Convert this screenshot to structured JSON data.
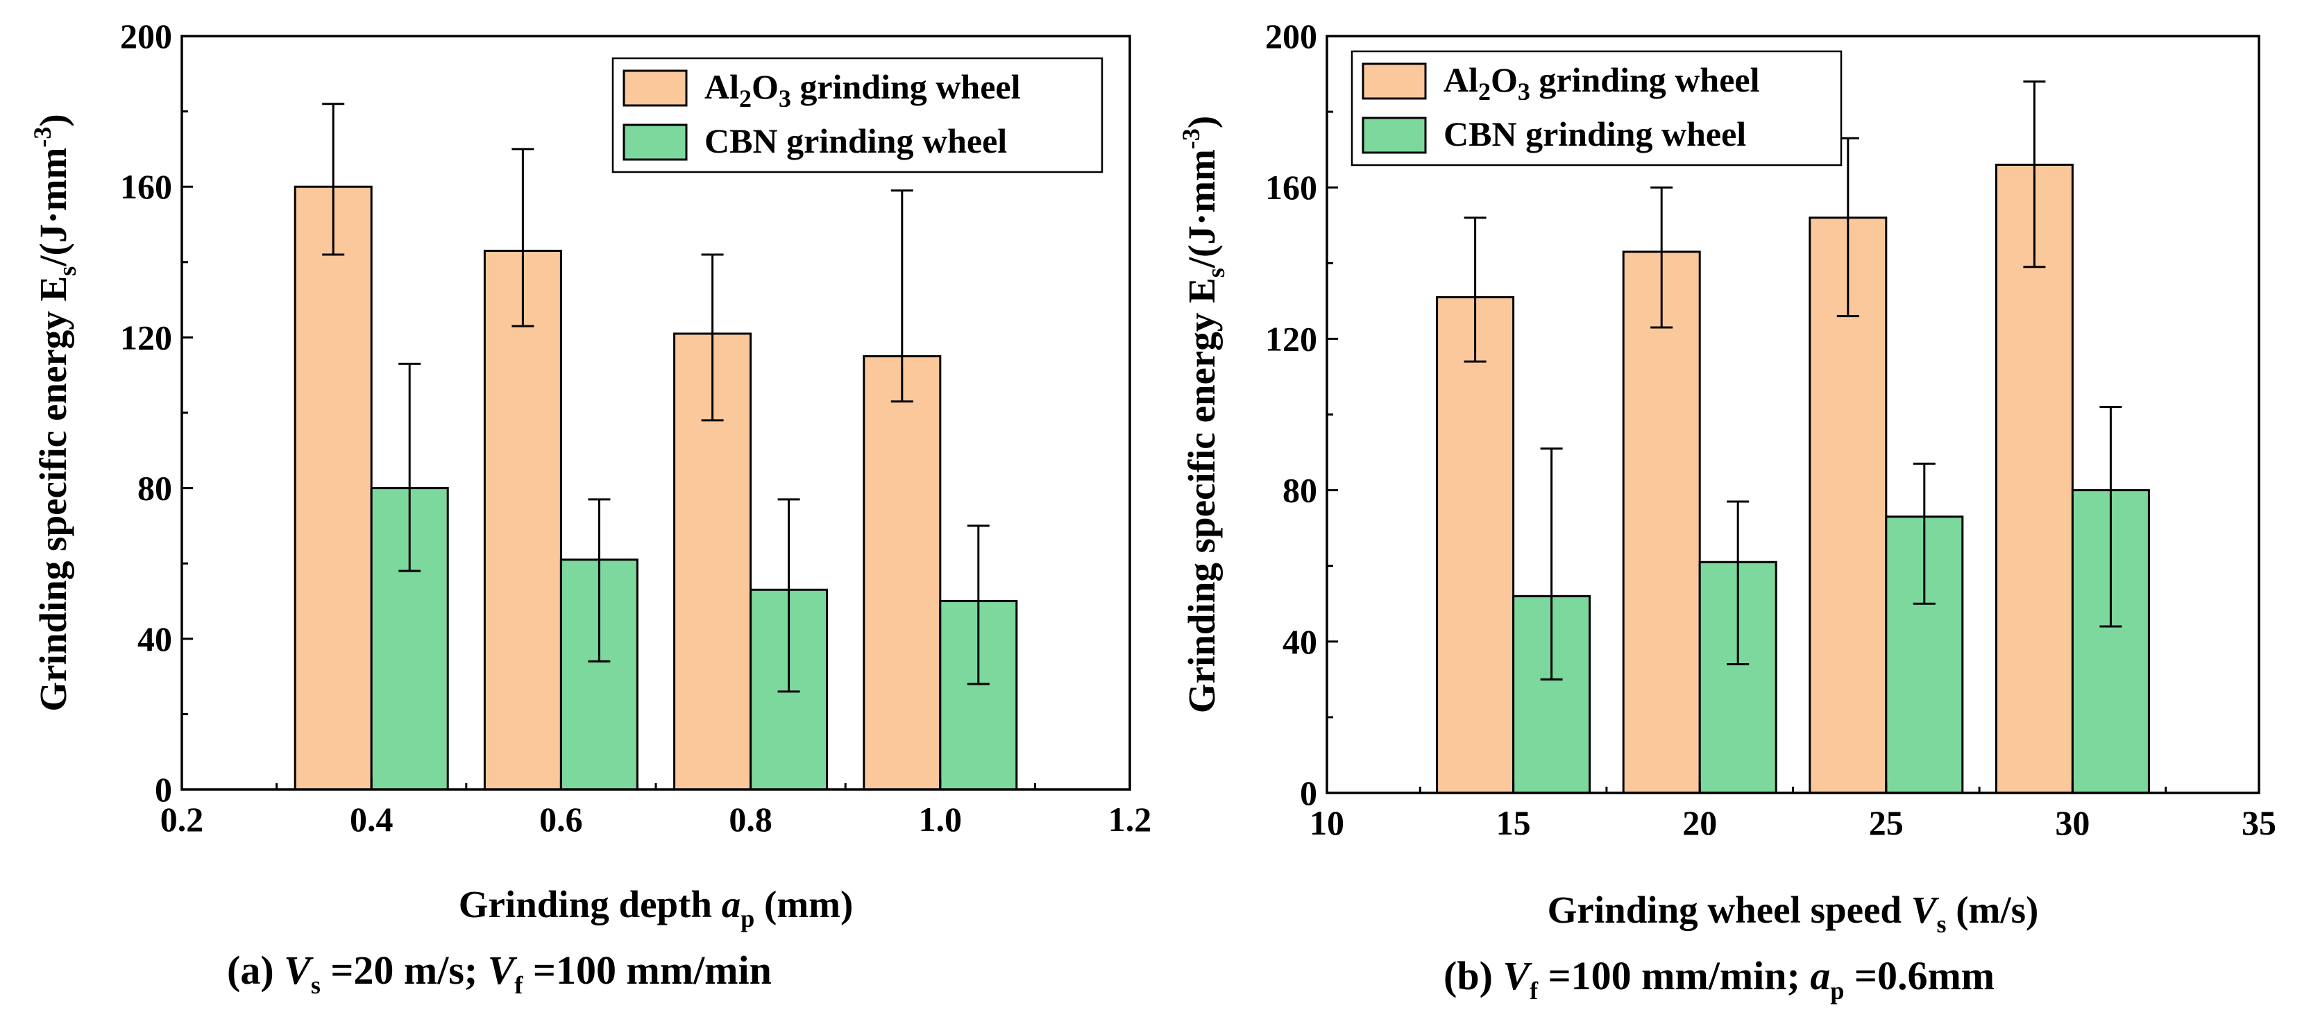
{
  "colors": {
    "al2o3": "#FBC89B",
    "cbn": "#7DD89E",
    "axis": "#000000"
  },
  "chart_data": [
    {
      "type": "bar",
      "panel_id": "a",
      "x": [
        0.4,
        0.6,
        0.8,
        1.0
      ],
      "xlim": [
        0.2,
        1.2
      ],
      "xticks": [
        0.2,
        0.4,
        0.6,
        0.8,
        1.0,
        1.2
      ],
      "xtick_labels": [
        "0.2",
        "0.4",
        "0.6",
        "0.8",
        "1.0",
        "1.2"
      ],
      "ylim": [
        0,
        200
      ],
      "yticks": [
        0,
        40,
        80,
        120,
        160,
        200
      ],
      "ytick_labels": [
        "0",
        "40",
        "80",
        "120",
        "160",
        "200"
      ],
      "xlabel": {
        "pre": "Grinding depth ",
        "var": "a",
        "sub": "p",
        "post": " (mm)"
      },
      "ylabel": {
        "pre": "Grinding specific energy  E",
        "sub": "s",
        "mid": "/(J·mm",
        "sup": "-3",
        "post": ")"
      },
      "caption": {
        "prefix": "(a) ",
        "v1": "V",
        "s1": "s",
        "t1": " =20 m/s; ",
        "v2": "V",
        "s2": "f",
        "t2": " =100 mm/min"
      },
      "legend_position": "top-right",
      "series": [
        {
          "name": "Al2O3 grinding wheel",
          "legend": {
            "a": "Al",
            "b": "2",
            "c": "O",
            "d": "3",
            "e": " grinding wheel"
          },
          "color_key": "al2o3",
          "values": [
            160,
            143,
            121,
            115
          ],
          "err_low": [
            142,
            123,
            98,
            103
          ],
          "err_high": [
            182,
            170,
            142,
            159
          ]
        },
        {
          "name": "CBN grinding wheel",
          "legend": {
            "a": "CBN grinding wheel"
          },
          "color_key": "cbn",
          "values": [
            80,
            61,
            53,
            50
          ],
          "err_low": [
            58,
            34,
            26,
            28
          ],
          "err_high": [
            113,
            77,
            77,
            70
          ]
        }
      ]
    },
    {
      "type": "bar",
      "panel_id": "b",
      "x": [
        15,
        20,
        25,
        30
      ],
      "xlim": [
        10,
        35
      ],
      "xticks": [
        10,
        15,
        20,
        25,
        30,
        35
      ],
      "xtick_labels": [
        "10",
        "15",
        "20",
        "25",
        "30",
        "35"
      ],
      "ylim": [
        0,
        200
      ],
      "yticks": [
        0,
        40,
        80,
        120,
        160,
        200
      ],
      "ytick_labels": [
        "0",
        "40",
        "80",
        "120",
        "160",
        "200"
      ],
      "xlabel": {
        "pre": "Grinding wheel speed  ",
        "var": "V",
        "sub": "s",
        "post": " (m/s)"
      },
      "ylabel": {
        "pre": "Grinding specific energy  E",
        "sub": "s",
        "mid": "/(J·mm",
        "sup": "-3",
        "post": ")"
      },
      "caption": {
        "prefix": "(b) ",
        "v1": "V",
        "s1": "f",
        "t1": " =100 mm/min; ",
        "v2": "a",
        "s2": "p",
        "t2": " =0.6mm"
      },
      "legend_position": "top-left",
      "series": [
        {
          "name": "Al2O3 grinding wheel",
          "legend": {
            "a": "Al",
            "b": "2",
            "c": "O",
            "d": "3",
            "e": " grinding wheel"
          },
          "color_key": "al2o3",
          "values": [
            131,
            143,
            152,
            166
          ],
          "err_low": [
            114,
            123,
            126,
            139
          ],
          "err_high": [
            152,
            160,
            173,
            188
          ]
        },
        {
          "name": "CBN grinding wheel",
          "legend": {
            "a": "CBN grinding wheel"
          },
          "color_key": "cbn",
          "values": [
            52,
            61,
            73,
            80
          ],
          "err_low": [
            30,
            34,
            50,
            44
          ],
          "err_high": [
            91,
            77,
            87,
            102
          ]
        }
      ]
    }
  ]
}
